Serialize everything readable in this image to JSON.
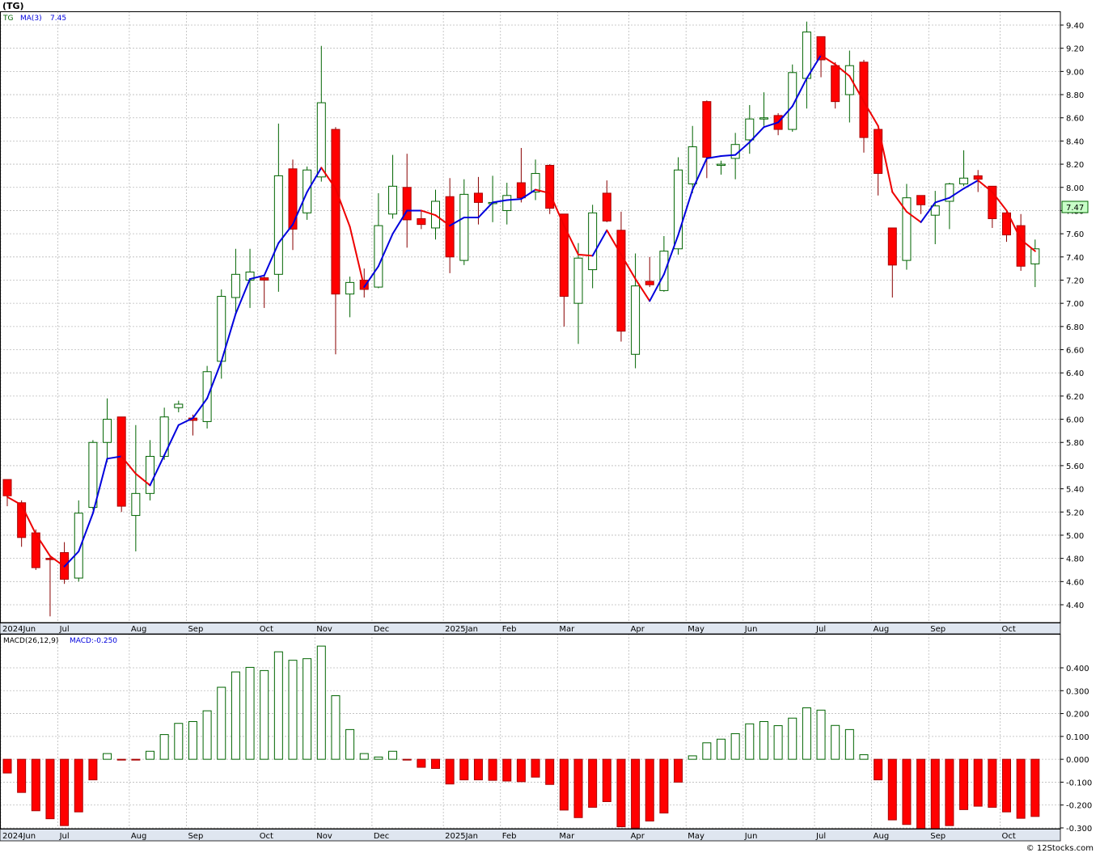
{
  "header": {
    "symbol_title": "(TG)",
    "legend_symbol": "TG",
    "legend_ma": "MA(3)",
    "legend_ma_value": "7.45",
    "macd_label": "MACD(26,12,9)",
    "macd_value_label": "MACD:-0.250",
    "last_price_tag": "7.47",
    "footer": "© 12Stocks.com"
  },
  "colors": {
    "background": "#ffffff",
    "panel_bg": "#ffffff",
    "grid": "#bbbbbb",
    "up": "#006400",
    "down": "#ff0000",
    "ma_up": "#0000dd",
    "ma_down": "#ee0000",
    "axis_band": "#dfe6f0",
    "last_price_bg": "#c8ffc8"
  },
  "chart_data": [
    {
      "type": "candlestick",
      "title": "(TG)",
      "ylim": [
        4.3,
        9.5
      ],
      "y_ticks": [
        "4.40",
        "4.60",
        "4.80",
        "5.00",
        "5.20",
        "5.40",
        "5.60",
        "5.80",
        "6.00",
        "6.20",
        "6.40",
        "6.60",
        "6.80",
        "7.00",
        "7.20",
        "7.40",
        "7.60",
        "7.80",
        "8.00",
        "8.20",
        "8.40",
        "8.60",
        "8.80",
        "9.00",
        "9.20",
        "9.40"
      ],
      "x_month_labels": [
        {
          "label": "2024Jun",
          "week": 0
        },
        {
          "label": "Jul",
          "week": 4
        },
        {
          "label": "Aug",
          "week": 9
        },
        {
          "label": "Sep",
          "week": 13
        },
        {
          "label": "Oct",
          "week": 18
        },
        {
          "label": "Nov",
          "week": 22
        },
        {
          "label": "Dec",
          "week": 26
        },
        {
          "label": "2025Jan",
          "week": 31
        },
        {
          "label": "Feb",
          "week": 35
        },
        {
          "label": "Mar",
          "week": 39
        },
        {
          "label": "Apr",
          "week": 44
        },
        {
          "label": "May",
          "week": 48
        },
        {
          "label": "Jun",
          "week": 52
        },
        {
          "label": "Jul",
          "week": 57
        },
        {
          "label": "Aug",
          "week": 61
        },
        {
          "label": "Sep",
          "week": 65
        },
        {
          "label": "Oct",
          "week": 70
        }
      ],
      "grid": true,
      "candles": [
        {
          "o": 5.48,
          "h": 5.48,
          "l": 5.25,
          "c": 5.34
        },
        {
          "o": 5.28,
          "h": 5.3,
          "l": 4.9,
          "c": 4.98
        },
        {
          "o": 5.02,
          "h": 5.05,
          "l": 4.7,
          "c": 4.72
        },
        {
          "o": 4.8,
          "h": 4.83,
          "l": 4.3,
          "c": 4.79
        },
        {
          "o": 4.85,
          "h": 4.94,
          "l": 4.58,
          "c": 4.62
        },
        {
          "o": 4.63,
          "h": 5.3,
          "l": 4.6,
          "c": 5.19
        },
        {
          "o": 5.24,
          "h": 5.82,
          "l": 5.22,
          "c": 5.8
        },
        {
          "o": 5.8,
          "h": 6.18,
          "l": 5.63,
          "c": 6.0
        },
        {
          "o": 6.02,
          "h": 6.02,
          "l": 5.2,
          "c": 5.25
        },
        {
          "o": 5.17,
          "h": 5.95,
          "l": 4.86,
          "c": 5.36
        },
        {
          "o": 5.36,
          "h": 5.82,
          "l": 5.3,
          "c": 5.68
        },
        {
          "o": 5.68,
          "h": 6.1,
          "l": 5.65,
          "c": 6.02
        },
        {
          "o": 6.1,
          "h": 6.16,
          "l": 6.06,
          "c": 6.13
        },
        {
          "o": 6.01,
          "h": 6.04,
          "l": 5.86,
          "c": 5.99
        },
        {
          "o": 5.98,
          "h": 6.46,
          "l": 5.92,
          "c": 6.41
        },
        {
          "o": 6.5,
          "h": 7.12,
          "l": 6.35,
          "c": 7.06
        },
        {
          "o": 7.05,
          "h": 7.47,
          "l": 6.92,
          "c": 7.25
        },
        {
          "o": 7.2,
          "h": 7.47,
          "l": 6.96,
          "c": 7.27
        },
        {
          "o": 7.22,
          "h": 7.24,
          "l": 6.96,
          "c": 7.2
        },
        {
          "o": 7.25,
          "h": 8.55,
          "l": 7.1,
          "c": 8.1
        },
        {
          "o": 8.16,
          "h": 8.24,
          "l": 7.46,
          "c": 7.64
        },
        {
          "o": 7.78,
          "h": 8.18,
          "l": 7.72,
          "c": 8.15
        },
        {
          "o": 8.09,
          "h": 9.22,
          "l": 8.05,
          "c": 8.73
        },
        {
          "o": 8.5,
          "h": 8.52,
          "l": 6.56,
          "c": 7.08
        },
        {
          "o": 7.08,
          "h": 7.23,
          "l": 6.88,
          "c": 7.18
        },
        {
          "o": 7.2,
          "h": 7.3,
          "l": 7.05,
          "c": 7.12
        },
        {
          "o": 7.14,
          "h": 7.95,
          "l": 7.13,
          "c": 7.67
        },
        {
          "o": 7.77,
          "h": 8.28,
          "l": 7.73,
          "c": 8.01
        },
        {
          "o": 8.0,
          "h": 8.29,
          "l": 7.48,
          "c": 7.72
        },
        {
          "o": 7.73,
          "h": 7.8,
          "l": 7.64,
          "c": 7.68
        },
        {
          "o": 7.65,
          "h": 7.98,
          "l": 7.55,
          "c": 7.88
        },
        {
          "o": 7.92,
          "h": 8.08,
          "l": 7.26,
          "c": 7.4
        },
        {
          "o": 7.37,
          "h": 8.07,
          "l": 7.33,
          "c": 7.94
        },
        {
          "o": 7.95,
          "h": 8.09,
          "l": 7.68,
          "c": 7.87
        },
        {
          "o": 7.87,
          "h": 8.1,
          "l": 7.7,
          "c": 7.87
        },
        {
          "o": 7.8,
          "h": 8.04,
          "l": 7.68,
          "c": 7.93
        },
        {
          "o": 8.04,
          "h": 8.34,
          "l": 7.87,
          "c": 7.91
        },
        {
          "o": 7.96,
          "h": 8.24,
          "l": 7.89,
          "c": 8.12
        },
        {
          "o": 8.19,
          "h": 8.2,
          "l": 7.77,
          "c": 7.82
        },
        {
          "o": 7.77,
          "h": 7.77,
          "l": 6.8,
          "c": 7.06
        },
        {
          "o": 7.0,
          "h": 7.52,
          "l": 6.65,
          "c": 7.39
        },
        {
          "o": 7.29,
          "h": 7.85,
          "l": 7.13,
          "c": 7.78
        },
        {
          "o": 7.95,
          "h": 8.06,
          "l": 7.7,
          "c": 7.71
        },
        {
          "o": 7.63,
          "h": 7.79,
          "l": 6.67,
          "c": 6.76
        },
        {
          "o": 6.56,
          "h": 7.43,
          "l": 6.44,
          "c": 7.15
        },
        {
          "o": 7.19,
          "h": 7.4,
          "l": 7.14,
          "c": 7.16
        },
        {
          "o": 7.11,
          "h": 7.58,
          "l": 7.1,
          "c": 7.45
        },
        {
          "o": 7.47,
          "h": 8.26,
          "l": 7.42,
          "c": 8.15
        },
        {
          "o": 8.03,
          "h": 8.53,
          "l": 7.95,
          "c": 8.35
        },
        {
          "o": 8.74,
          "h": 8.75,
          "l": 8.08,
          "c": 8.26
        },
        {
          "o": 8.19,
          "h": 8.23,
          "l": 8.11,
          "c": 8.2
        },
        {
          "o": 8.25,
          "h": 8.47,
          "l": 8.07,
          "c": 8.37
        },
        {
          "o": 8.41,
          "h": 8.71,
          "l": 8.29,
          "c": 8.59
        },
        {
          "o": 8.59,
          "h": 8.82,
          "l": 8.53,
          "c": 8.6
        },
        {
          "o": 8.62,
          "h": 8.64,
          "l": 8.45,
          "c": 8.5
        },
        {
          "o": 8.5,
          "h": 9.06,
          "l": 8.48,
          "c": 8.99
        },
        {
          "o": 8.94,
          "h": 9.43,
          "l": 8.68,
          "c": 9.34
        },
        {
          "o": 9.3,
          "h": 9.3,
          "l": 8.95,
          "c": 9.1
        },
        {
          "o": 9.05,
          "h": 9.08,
          "l": 8.68,
          "c": 8.74
        },
        {
          "o": 8.8,
          "h": 9.18,
          "l": 8.56,
          "c": 9.05
        },
        {
          "o": 9.08,
          "h": 9.1,
          "l": 8.3,
          "c": 8.43
        },
        {
          "o": 8.5,
          "h": 8.5,
          "l": 7.93,
          "c": 8.12
        },
        {
          "o": 7.65,
          "h": 7.65,
          "l": 7.05,
          "c": 7.33
        },
        {
          "o": 7.37,
          "h": 8.03,
          "l": 7.29,
          "c": 7.91
        },
        {
          "o": 7.93,
          "h": 7.93,
          "l": 7.77,
          "c": 7.85
        },
        {
          "o": 7.76,
          "h": 7.97,
          "l": 7.51,
          "c": 7.84
        },
        {
          "o": 7.88,
          "h": 8.04,
          "l": 7.64,
          "c": 8.03
        },
        {
          "o": 8.03,
          "h": 8.32,
          "l": 8.01,
          "c": 8.08
        },
        {
          "o": 8.1,
          "h": 8.15,
          "l": 7.96,
          "c": 8.07
        },
        {
          "o": 8.01,
          "h": 8.01,
          "l": 7.65,
          "c": 7.73
        },
        {
          "o": 7.78,
          "h": 7.79,
          "l": 7.53,
          "c": 7.59
        },
        {
          "o": 7.67,
          "h": 7.77,
          "l": 7.28,
          "c": 7.32
        },
        {
          "o": 7.34,
          "h": 7.55,
          "l": 7.14,
          "c": 7.47
        }
      ],
      "ma3": [
        5.33,
        5.26,
        5.01,
        4.82,
        4.73,
        4.86,
        5.19,
        5.66,
        5.68,
        5.53,
        5.43,
        5.69,
        5.95,
        6.01,
        6.18,
        6.5,
        6.91,
        7.21,
        7.24,
        7.52,
        7.68,
        7.96,
        8.17,
        7.99,
        7.66,
        7.14,
        7.32,
        7.6,
        7.8,
        7.8,
        7.76,
        7.67,
        7.74,
        7.74,
        7.87,
        7.89,
        7.9,
        7.98,
        7.95,
        7.67,
        7.42,
        7.41,
        7.63,
        7.42,
        7.21,
        7.02,
        7.25,
        7.59,
        7.98,
        8.25,
        8.27,
        8.28,
        8.39,
        8.52,
        8.56,
        8.7,
        8.94,
        9.14,
        9.06,
        8.96,
        8.74,
        8.53,
        7.96,
        7.79,
        7.7,
        7.87,
        7.91,
        7.99,
        8.06,
        7.96,
        7.8,
        7.55,
        7.45
      ],
      "ma3_label": "MA(3)"
    },
    {
      "type": "bar",
      "title": "MACD(26,12,9)",
      "ylim": [
        -0.3,
        0.5
      ],
      "y_ticks": [
        "0.400",
        "0.300",
        "0.200",
        "0.100",
        "0.000",
        "-0.100",
        "-0.200",
        "-0.300"
      ],
      "values": [
        -0.06,
        -0.145,
        -0.225,
        -0.26,
        -0.29,
        -0.23,
        -0.09,
        0.025,
        -0.002,
        -0.002,
        0.035,
        0.108,
        0.157,
        0.165,
        0.212,
        0.315,
        0.382,
        0.402,
        0.388,
        0.47,
        0.433,
        0.44,
        0.495,
        0.278,
        0.13,
        0.025,
        0.01,
        0.035,
        -0.002,
        -0.035,
        -0.04,
        -0.108,
        -0.09,
        -0.09,
        -0.092,
        -0.095,
        -0.098,
        -0.078,
        -0.11,
        -0.222,
        -0.255,
        -0.21,
        -0.185,
        -0.295,
        -0.3,
        -0.27,
        -0.235,
        -0.1,
        0.015,
        0.072,
        0.088,
        0.112,
        0.155,
        0.165,
        0.147,
        0.18,
        0.225,
        0.215,
        0.148,
        0.13,
        0.02,
        -0.09,
        -0.265,
        -0.285,
        -0.31,
        -0.305,
        -0.29,
        -0.22,
        -0.205,
        -0.21,
        -0.23,
        -0.258,
        -0.25
      ]
    }
  ]
}
